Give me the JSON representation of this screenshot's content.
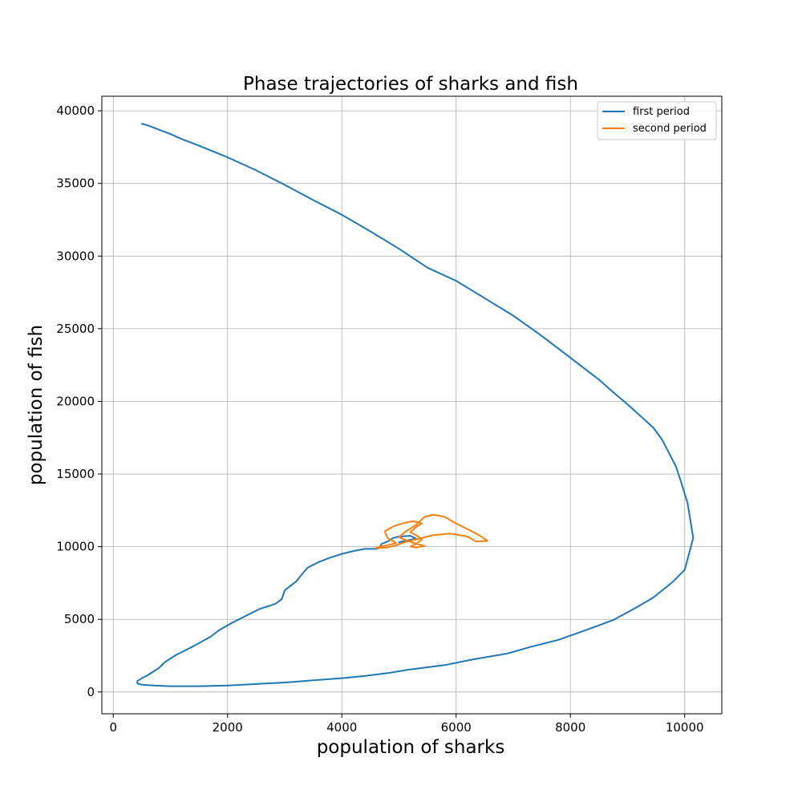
{
  "chart_data": {
    "type": "line",
    "title": "Phase trajectories of sharks and fish",
    "xlabel": "population of sharks",
    "ylabel": "population of fish",
    "xlim": [
      -200,
      10650
    ],
    "ylim": [
      -1500,
      41000
    ],
    "xticks": [
      0,
      2000,
      4000,
      6000,
      8000,
      10000
    ],
    "yticks": [
      0,
      5000,
      10000,
      15000,
      20000,
      25000,
      30000,
      35000,
      40000
    ],
    "grid": true,
    "legend_position": "top-right",
    "series": [
      {
        "name": "first period",
        "color": "#1f77b4",
        "points": [
          [
            500,
            39100
          ],
          [
            600,
            39000
          ],
          [
            800,
            38700
          ],
          [
            1000,
            38400
          ],
          [
            1200,
            38050
          ],
          [
            1500,
            37600
          ],
          [
            2000,
            36800
          ],
          [
            2500,
            35900
          ],
          [
            3000,
            34900
          ],
          [
            3500,
            33850
          ],
          [
            4000,
            32850
          ],
          [
            4500,
            31700
          ],
          [
            5000,
            30500
          ],
          [
            5500,
            29200
          ],
          [
            6000,
            28300
          ],
          [
            6500,
            27100
          ],
          [
            7000,
            25900
          ],
          [
            7500,
            24500
          ],
          [
            8000,
            23000
          ],
          [
            8500,
            21500
          ],
          [
            8700,
            20800
          ],
          [
            9000,
            19800
          ],
          [
            9450,
            18200
          ],
          [
            9600,
            17400
          ],
          [
            9850,
            15500
          ],
          [
            9950,
            14300
          ],
          [
            10050,
            13000
          ],
          [
            10150,
            10600
          ],
          [
            10000,
            8400
          ],
          [
            9800,
            7600
          ],
          [
            9450,
            6500
          ],
          [
            9100,
            5700
          ],
          [
            8750,
            4950
          ],
          [
            8300,
            4300
          ],
          [
            7800,
            3600
          ],
          [
            7300,
            3100
          ],
          [
            6900,
            2650
          ],
          [
            6300,
            2250
          ],
          [
            5800,
            1850
          ],
          [
            5200,
            1550
          ],
          [
            4800,
            1300
          ],
          [
            4400,
            1100
          ],
          [
            4000,
            950
          ],
          [
            3500,
            800
          ],
          [
            3000,
            650
          ],
          [
            2500,
            550
          ],
          [
            2000,
            450
          ],
          [
            1500,
            400
          ],
          [
            1000,
            400
          ],
          [
            700,
            450
          ],
          [
            500,
            500
          ],
          [
            420,
            600
          ],
          [
            420,
            750
          ],
          [
            500,
            950
          ],
          [
            600,
            1150
          ],
          [
            800,
            1650
          ],
          [
            900,
            2050
          ],
          [
            1100,
            2550
          ],
          [
            1400,
            3150
          ],
          [
            1700,
            3800
          ],
          [
            1850,
            4250
          ],
          [
            2050,
            4700
          ],
          [
            2300,
            5200
          ],
          [
            2550,
            5700
          ],
          [
            2750,
            5950
          ],
          [
            2850,
            6100
          ],
          [
            2950,
            6400
          ],
          [
            3000,
            7000
          ],
          [
            3100,
            7300
          ],
          [
            3200,
            7600
          ],
          [
            3300,
            8100
          ],
          [
            3400,
            8550
          ],
          [
            3600,
            8950
          ],
          [
            3800,
            9250
          ],
          [
            4000,
            9500
          ],
          [
            4200,
            9700
          ],
          [
            4400,
            9850
          ],
          [
            4600,
            9850
          ],
          [
            4650,
            9900
          ],
          [
            4700,
            10200
          ],
          [
            4800,
            10350
          ],
          [
            4900,
            10600
          ],
          [
            5000,
            10700
          ],
          [
            5200,
            10750
          ],
          [
            5300,
            10550
          ],
          [
            5100,
            10400
          ],
          [
            5000,
            10300
          ]
        ]
      },
      {
        "name": "second period",
        "color": "#ff7f0e",
        "points": [
          [
            4600,
            9950
          ],
          [
            4800,
            10100
          ],
          [
            4950,
            10250
          ],
          [
            4800,
            10600
          ],
          [
            4750,
            11050
          ],
          [
            4900,
            11400
          ],
          [
            5100,
            11650
          ],
          [
            5250,
            11750
          ],
          [
            5400,
            11600
          ],
          [
            5300,
            11350
          ],
          [
            5200,
            11000
          ],
          [
            5300,
            10800
          ],
          [
            5400,
            10500
          ],
          [
            5300,
            10200
          ],
          [
            5200,
            10000
          ],
          [
            5300,
            9950
          ],
          [
            5450,
            10050
          ],
          [
            5300,
            10200
          ],
          [
            5150,
            10400
          ],
          [
            5000,
            10650
          ],
          [
            5100,
            11000
          ],
          [
            5300,
            11500
          ],
          [
            5450,
            12050
          ],
          [
            5600,
            12200
          ],
          [
            5800,
            12050
          ],
          [
            6000,
            11600
          ],
          [
            6200,
            11200
          ],
          [
            6400,
            10800
          ],
          [
            6550,
            10400
          ],
          [
            6350,
            10350
          ],
          [
            6200,
            10700
          ],
          [
            5900,
            10900
          ],
          [
            5600,
            10800
          ],
          [
            5300,
            10500
          ],
          [
            5100,
            10300
          ],
          [
            4950,
            10100
          ],
          [
            4800,
            9950
          ],
          [
            4600,
            9900
          ]
        ]
      }
    ]
  }
}
